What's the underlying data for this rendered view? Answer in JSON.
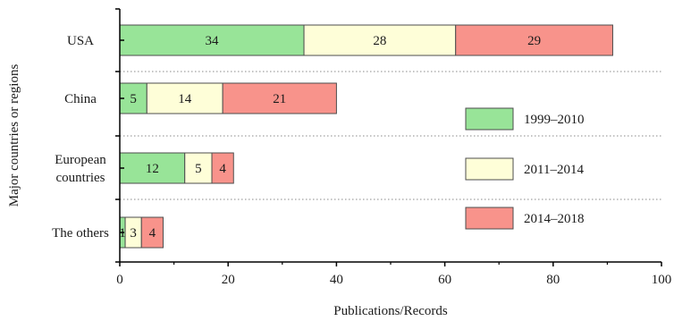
{
  "chart_data": {
    "type": "bar",
    "orientation": "horizontal",
    "stacked": true,
    "categories": [
      [
        "USA"
      ],
      [
        "China"
      ],
      [
        "European",
        "countries"
      ],
      [
        "The others"
      ]
    ],
    "series": [
      {
        "name": "1999–2010",
        "color": "#98e498",
        "values": [
          34,
          5,
          12,
          1
        ]
      },
      {
        "name": "2011–2014",
        "color": "#fefed8",
        "values": [
          28,
          14,
          5,
          3
        ]
      },
      {
        "name": "2014–2018",
        "color": "#f8938b",
        "values": [
          29,
          21,
          4,
          4
        ]
      }
    ],
    "xlabel": "Publications/Records",
    "ylabel": "Major countries or regions",
    "xlim": [
      0,
      100
    ],
    "xticks": [
      0,
      20,
      40,
      60,
      80,
      100
    ],
    "grid": "dotted separators between categories",
    "legend_position": "right"
  }
}
